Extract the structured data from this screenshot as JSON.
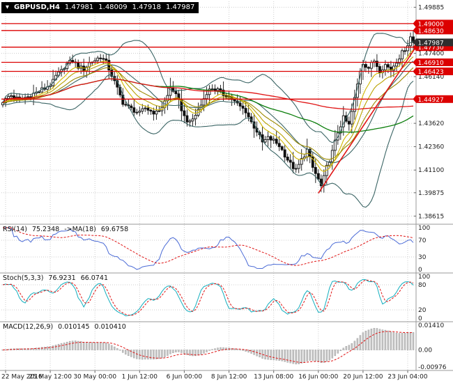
{
  "header": {
    "dropdown_icon": "▼",
    "symbol": "GBPUSD,H4",
    "open": "1.47981",
    "high": "1.48009",
    "low": "1.47918",
    "close": "1.47987"
  },
  "colors": {
    "background": "#ffffff",
    "grid": "#cdcdcd",
    "separator": "#9a9a9a",
    "axis_text": "#1a1a1a",
    "time_text": "#1a1a1a",
    "bull": "#ffffff",
    "bear": "#111111",
    "outline": "#111111",
    "wick": "#111111",
    "bollinger": "#3a6464",
    "trendline": "#e01414",
    "level_line": "#dc0000",
    "tag_text": "#ffffff",
    "current_tag_bg": "#2e2e2e",
    "rsi_line": "#4b6bd6",
    "stoch_line": "#12aebe",
    "signal_line": "#e01414",
    "macd_bar_fill": "#c6c6c6",
    "macd_bar_stroke": "#a0a0a0"
  },
  "chart_data": {
    "type": "candlestick",
    "title": "GBPUSD,H4",
    "price_pane": {
      "price_range": [
        1.3825,
        1.502
      ],
      "grid_labels": [
        "1.49885",
        "1.47400",
        "1.46140",
        "1.43620",
        "1.42360",
        "1.41100",
        "1.39875",
        "1.38615"
      ],
      "levels": [
        "1.49000",
        "1.48630",
        "1.47730",
        "1.46910",
        "1.46423",
        "1.44927"
      ],
      "current_price": "1.47987",
      "bollinger": {
        "period": 20,
        "deviation": 2,
        "color": "#3a6464"
      },
      "overlays": [
        {
          "type": "ema",
          "period": 8,
          "color": "#d2b800",
          "width": 1.1
        },
        {
          "type": "ema",
          "period": 13,
          "color": "#b9a200",
          "width": 1.1
        },
        {
          "type": "ema",
          "period": 21,
          "color": "#9c8a00",
          "width": 1.1
        },
        {
          "type": "sma",
          "period": 55,
          "color": "#0a7d0a",
          "width": 1.3
        },
        {
          "type": "sma",
          "period": 120,
          "color": "#e01414",
          "width": 1.3
        }
      ],
      "trendline": {
        "from": [
          113,
          1.3985
        ],
        "to": [
          148,
          1.4775
        ]
      },
      "waypoints": [
        [
          0,
          1.4482
        ],
        [
          3,
          1.4512
        ],
        [
          6,
          1.449
        ],
        [
          9,
          1.4505
        ],
        [
          12,
          1.4528
        ],
        [
          15,
          1.455
        ],
        [
          17,
          1.4572
        ],
        [
          20,
          1.463
        ],
        [
          23,
          1.4682
        ],
        [
          25,
          1.47
        ],
        [
          27,
          1.4668
        ],
        [
          29,
          1.4652
        ],
        [
          31,
          1.4688
        ],
        [
          33,
          1.4703
        ],
        [
          35,
          1.4722
        ],
        [
          37,
          1.469
        ],
        [
          39,
          1.4622
        ],
        [
          41,
          1.4548
        ],
        [
          43,
          1.4475
        ],
        [
          45,
          1.4448
        ],
        [
          47,
          1.4432
        ],
        [
          49,
          1.4415
        ],
        [
          51,
          1.4445
        ],
        [
          53,
          1.4428
        ],
        [
          55,
          1.4418
        ],
        [
          57,
          1.4452
        ],
        [
          59,
          1.451
        ],
        [
          60,
          1.4552
        ],
        [
          61,
          1.454
        ],
        [
          63,
          1.448
        ],
        [
          65,
          1.4398
        ],
        [
          67,
          1.4362
        ],
        [
          69,
          1.4408
        ],
        [
          71,
          1.4462
        ],
        [
          73,
          1.453
        ],
        [
          75,
          1.4552
        ],
        [
          77,
          1.454
        ],
        [
          79,
          1.4518
        ],
        [
          81,
          1.4508
        ],
        [
          83,
          1.4478
        ],
        [
          85,
          1.4452
        ],
        [
          87,
          1.4428
        ],
        [
          89,
          1.4368
        ],
        [
          91,
          1.432
        ],
        [
          93,
          1.4258
        ],
        [
          95,
          1.4282
        ],
        [
          97,
          1.4268
        ],
        [
          99,
          1.4242
        ],
        [
          101,
          1.4192
        ],
        [
          103,
          1.4142
        ],
        [
          105,
          1.4108
        ],
        [
          107,
          1.4165
        ],
        [
          109,
          1.4218
        ],
        [
          111,
          1.4122
        ],
        [
          113,
          1.4058
        ],
        [
          114,
          1.4022
        ],
        [
          115,
          1.4068
        ],
        [
          116,
          1.4125
        ],
        [
          118,
          1.4208
        ],
        [
          120,
          1.4315
        ],
        [
          122,
          1.439
        ],
        [
          124,
          1.4352
        ],
        [
          126,
          1.4495
        ],
        [
          128,
          1.4648
        ],
        [
          129,
          1.4688
        ],
        [
          131,
          1.4662
        ],
        [
          133,
          1.47
        ],
        [
          135,
          1.4648
        ],
        [
          137,
          1.4678
        ],
        [
          139,
          1.4652
        ],
        [
          141,
          1.4698
        ],
        [
          143,
          1.4742
        ],
        [
          145,
          1.4788
        ],
        [
          146,
          1.4828
        ],
        [
          147,
          1.4799
        ]
      ]
    },
    "x_axis": {
      "count": 148,
      "first_label_index": 1,
      "candles_per_label": 16,
      "labels": [
        "22 May 2016",
        "25 May 12:00",
        "30 May 00:00",
        "1 Jun 12:00",
        "6 Jun 00:00",
        "8 Jun 12:00",
        "13 Jun 08:00",
        "16 Jun 00:00",
        "20 Jun 12:00",
        "23 Jun 04:00"
      ]
    },
    "rsi_pane": {
      "label": "RSI(14)",
      "value": "75.2348",
      "ma_label": "->MA(18)",
      "ma_value": "69.6758",
      "period": 14,
      "ma_period": 18,
      "axis": [
        "100",
        "70",
        "30",
        "0"
      ],
      "guide_levels": [
        70,
        30
      ]
    },
    "stoch_pane": {
      "label": "Stoch(5,3,3)",
      "value": "76.9231",
      "signal_value": "66.0741",
      "k_period": 5,
      "slowing": 3,
      "d_period": 3,
      "axis": [
        "100",
        "80",
        "20",
        "0"
      ],
      "guide_levels": [
        80,
        20
      ]
    },
    "macd_pane": {
      "label": "MACD(12,26,9)",
      "value": "0.010145",
      "signal_value": "0.010410",
      "fast": 12,
      "slow": 26,
      "signal": 9,
      "axis": [
        "0.01410",
        "0.00",
        "-0.00976"
      ]
    }
  }
}
